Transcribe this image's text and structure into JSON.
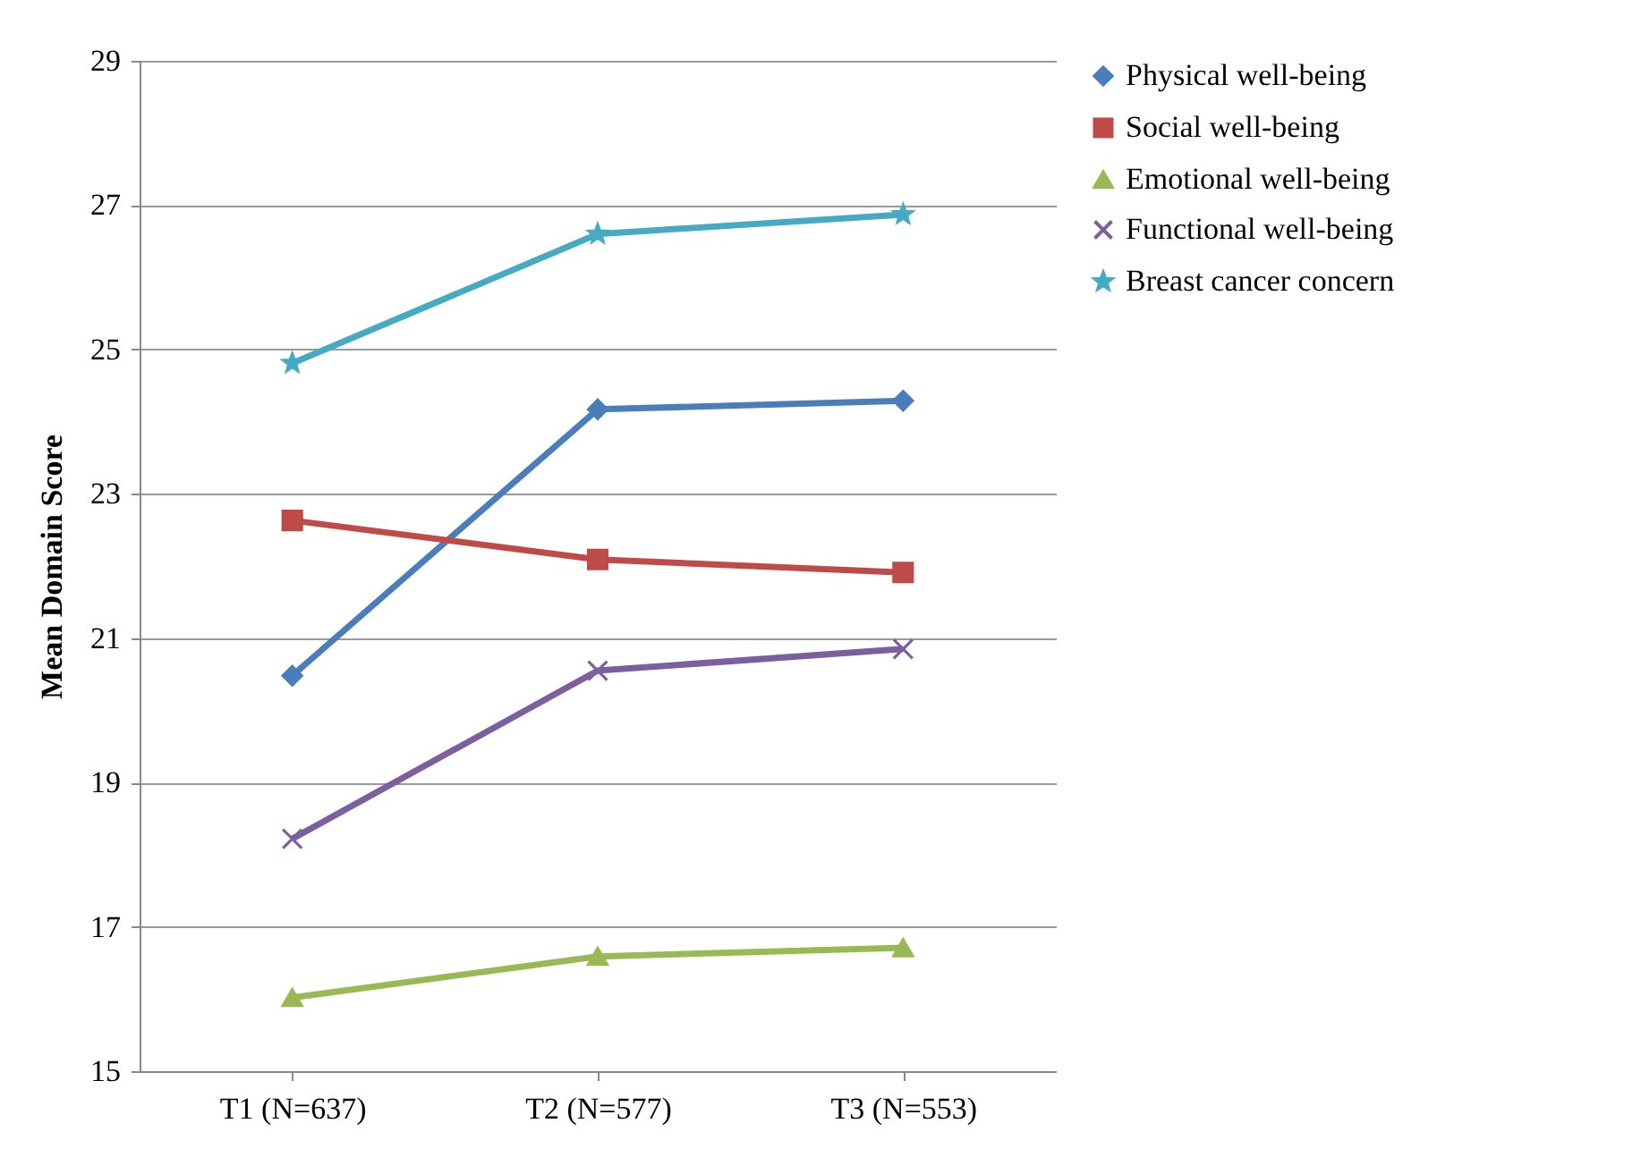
{
  "chart_data": {
    "type": "line",
    "ylabel": "Mean Domain Score",
    "categories": [
      "T1 (N=637)",
      "T2 (N=577)",
      "T3 (N=553)"
    ],
    "ylim": [
      15,
      29
    ],
    "yticks": [
      15,
      17,
      19,
      21,
      23,
      25,
      27,
      29
    ],
    "grid": "y",
    "legend": "right",
    "series": [
      {
        "name": "Physical well-being",
        "color": "#4a7ebb",
        "marker": "diamond",
        "values": [
          20.48,
          24.17,
          24.29
        ]
      },
      {
        "name": "Social well-being",
        "color": "#be4b48",
        "marker": "square",
        "values": [
          22.63,
          22.09,
          21.91
        ]
      },
      {
        "name": "Emotional well-being",
        "color": "#98b954",
        "marker": "triangle",
        "values": [
          16.02,
          16.59,
          16.71
        ]
      },
      {
        "name": "Functional well-being",
        "color": "#7d5fa0",
        "marker": "cross",
        "values": [
          18.22,
          20.55,
          20.85
        ]
      },
      {
        "name": "Breast cancer concern",
        "color": "#46aac5",
        "marker": "star",
        "values": [
          24.81,
          26.6,
          26.87
        ]
      }
    ]
  }
}
